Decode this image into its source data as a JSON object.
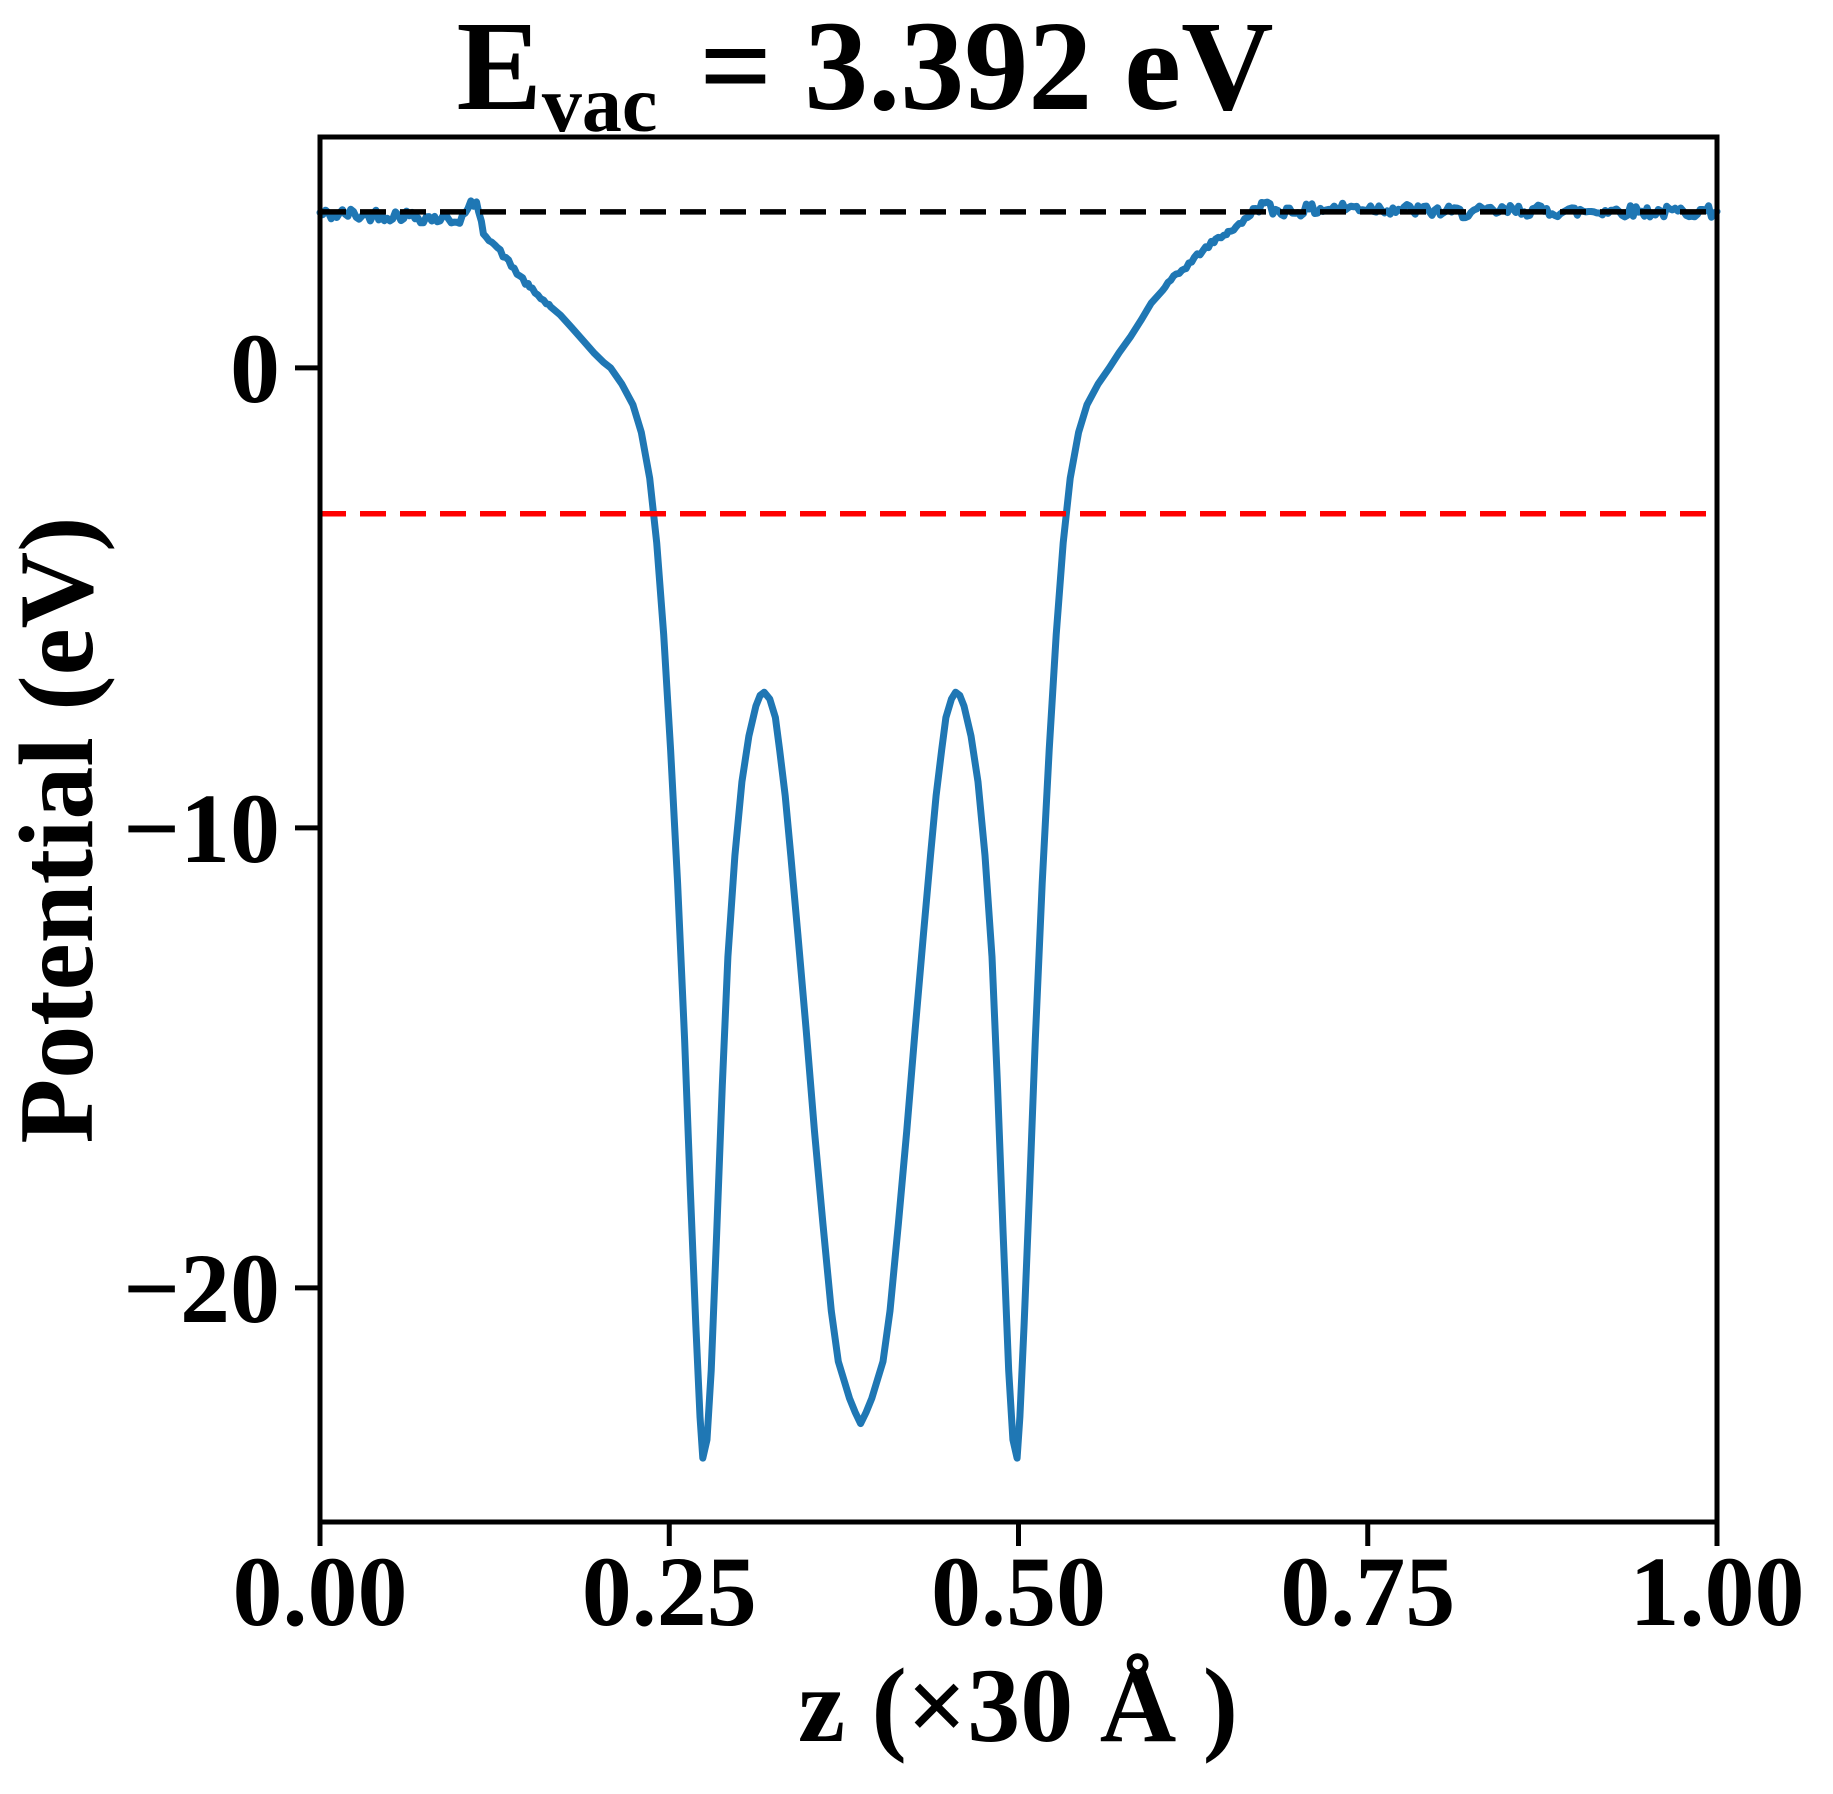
{
  "figure": {
    "title_parts": {
      "base": "E",
      "subscript": "vac",
      "suffix": " = 3.392 eV"
    }
  },
  "chart_data": {
    "type": "line",
    "title": "E_vac = 3.392 eV",
    "xlabel": "z (×30 Å )",
    "ylabel": "Potential (eV)",
    "xlim": [
      0.0,
      1.0
    ],
    "ylim": [
      -25.09,
      5.02
    ],
    "grid": false,
    "legend": "none",
    "x_ticks": [
      {
        "value": 0.0,
        "label": "0.00"
      },
      {
        "value": 0.25,
        "label": "0.25"
      },
      {
        "value": 0.5,
        "label": "0.50"
      },
      {
        "value": 0.75,
        "label": "0.75"
      },
      {
        "value": 1.0,
        "label": "1.00"
      }
    ],
    "y_ticks": [
      {
        "value": 0,
        "label": "0"
      },
      {
        "value": -10,
        "label": "−10"
      },
      {
        "value": -20,
        "label": "−20"
      }
    ],
    "reference_lines": [
      {
        "name": "vacuum-level-line",
        "value": 3.392,
        "color": "#000000",
        "style": "dashed"
      },
      {
        "name": "fermi-level-line",
        "value": -3.17,
        "color": "#ff0000",
        "style": "dashed"
      }
    ],
    "series": [
      {
        "name": "planar-averaged-potential",
        "color": "#1f77b4",
        "line_width": 7,
        "noise_step": 0.002,
        "noise_regions": [
          {
            "from": 0.0,
            "to": 0.112,
            "amplitude": 0.13
          },
          {
            "from": 0.113,
            "to": 0.165,
            "amplitude": 0.05
          },
          {
            "from": 0.6,
            "to": 0.668,
            "amplitude": 0.05
          },
          {
            "from": 0.668,
            "to": 1.001,
            "amplitude": 0.13
          }
        ],
        "points": [
          [
            0.0,
            3.35
          ],
          [
            0.01,
            3.32
          ],
          [
            0.02,
            3.36
          ],
          [
            0.03,
            3.3
          ],
          [
            0.04,
            3.34
          ],
          [
            0.05,
            3.31
          ],
          [
            0.06,
            3.33
          ],
          [
            0.07,
            3.28
          ],
          [
            0.08,
            3.26
          ],
          [
            0.09,
            3.24
          ],
          [
            0.098,
            3.22
          ],
          [
            0.104,
            3.32
          ],
          [
            0.11,
            3.62
          ],
          [
            0.1135,
            3.4
          ],
          [
            0.117,
            2.95
          ],
          [
            0.125,
            2.68
          ],
          [
            0.133,
            2.38
          ],
          [
            0.141,
            2.07
          ],
          [
            0.15,
            1.75
          ],
          [
            0.158,
            1.52
          ],
          [
            0.165,
            1.33
          ],
          [
            0.172,
            1.15
          ],
          [
            0.18,
            0.88
          ],
          [
            0.188,
            0.61
          ],
          [
            0.196,
            0.33
          ],
          [
            0.203,
            0.12
          ],
          [
            0.208,
            0.0
          ],
          [
            0.216,
            -0.35
          ],
          [
            0.224,
            -0.8
          ],
          [
            0.23,
            -1.4
          ],
          [
            0.236,
            -2.4
          ],
          [
            0.241,
            -3.8
          ],
          [
            0.246,
            -5.8
          ],
          [
            0.251,
            -8.3
          ],
          [
            0.256,
            -11.2
          ],
          [
            0.261,
            -14.6
          ],
          [
            0.265,
            -17.8
          ],
          [
            0.269,
            -20.8
          ],
          [
            0.272,
            -22.8
          ],
          [
            0.274,
            -23.7
          ],
          [
            0.277,
            -23.3
          ],
          [
            0.28,
            -21.8
          ],
          [
            0.284,
            -18.8
          ],
          [
            0.288,
            -15.6
          ],
          [
            0.292,
            -12.8
          ],
          [
            0.297,
            -10.6
          ],
          [
            0.302,
            -9.0
          ],
          [
            0.307,
            -8.0
          ],
          [
            0.312,
            -7.35
          ],
          [
            0.315,
            -7.12
          ],
          [
            0.318,
            -7.05
          ],
          [
            0.322,
            -7.2
          ],
          [
            0.326,
            -7.6
          ],
          [
            0.329,
            -8.3
          ],
          [
            0.333,
            -9.3
          ],
          [
            0.337,
            -10.6
          ],
          [
            0.342,
            -12.3
          ],
          [
            0.348,
            -14.4
          ],
          [
            0.354,
            -16.6
          ],
          [
            0.36,
            -18.6
          ],
          [
            0.366,
            -20.5
          ],
          [
            0.371,
            -21.6
          ],
          [
            0.375,
            -22.0
          ],
          [
            0.379,
            -22.4
          ],
          [
            0.383,
            -22.7
          ],
          [
            0.387,
            -22.95
          ],
          [
            0.391,
            -22.7
          ],
          [
            0.395,
            -22.4
          ],
          [
            0.399,
            -22.0
          ],
          [
            0.403,
            -21.6
          ],
          [
            0.408,
            -20.5
          ],
          [
            0.414,
            -18.6
          ],
          [
            0.42,
            -16.6
          ],
          [
            0.426,
            -14.4
          ],
          [
            0.432,
            -12.3
          ],
          [
            0.437,
            -10.6
          ],
          [
            0.441,
            -9.3
          ],
          [
            0.445,
            -8.3
          ],
          [
            0.448,
            -7.6
          ],
          [
            0.452,
            -7.2
          ],
          [
            0.455,
            -7.05
          ],
          [
            0.458,
            -7.12
          ],
          [
            0.461,
            -7.35
          ],
          [
            0.466,
            -8.0
          ],
          [
            0.471,
            -9.0
          ],
          [
            0.476,
            -10.6
          ],
          [
            0.481,
            -12.8
          ],
          [
            0.485,
            -15.6
          ],
          [
            0.489,
            -18.8
          ],
          [
            0.493,
            -21.8
          ],
          [
            0.496,
            -23.3
          ],
          [
            0.499,
            -23.7
          ],
          [
            0.501,
            -22.8
          ],
          [
            0.504,
            -20.8
          ],
          [
            0.508,
            -17.8
          ],
          [
            0.512,
            -14.6
          ],
          [
            0.517,
            -11.2
          ],
          [
            0.522,
            -8.3
          ],
          [
            0.527,
            -5.8
          ],
          [
            0.532,
            -3.8
          ],
          [
            0.537,
            -2.4
          ],
          [
            0.543,
            -1.4
          ],
          [
            0.549,
            -0.8
          ],
          [
            0.557,
            -0.35
          ],
          [
            0.565,
            0.0
          ],
          [
            0.572,
            0.33
          ],
          [
            0.58,
            0.67
          ],
          [
            0.588,
            1.05
          ],
          [
            0.595,
            1.41
          ],
          [
            0.603,
            1.7
          ],
          [
            0.611,
            1.95
          ],
          [
            0.62,
            2.2
          ],
          [
            0.63,
            2.5
          ],
          [
            0.641,
            2.78
          ],
          [
            0.65,
            2.95
          ],
          [
            0.658,
            3.1
          ],
          [
            0.664,
            3.28
          ],
          [
            0.67,
            3.5
          ],
          [
            0.676,
            3.55
          ],
          [
            0.682,
            3.42
          ],
          [
            0.7,
            3.42
          ],
          [
            0.72,
            3.46
          ],
          [
            0.74,
            3.49
          ],
          [
            0.76,
            3.47
          ],
          [
            0.78,
            3.44
          ],
          [
            0.8,
            3.4
          ],
          [
            0.82,
            3.38
          ],
          [
            0.84,
            3.4
          ],
          [
            0.86,
            3.43
          ],
          [
            0.88,
            3.41
          ],
          [
            0.9,
            3.4
          ],
          [
            0.92,
            3.42
          ],
          [
            0.94,
            3.41
          ],
          [
            0.96,
            3.39
          ],
          [
            0.98,
            3.4
          ],
          [
            1.0,
            3.4
          ]
        ]
      }
    ]
  }
}
